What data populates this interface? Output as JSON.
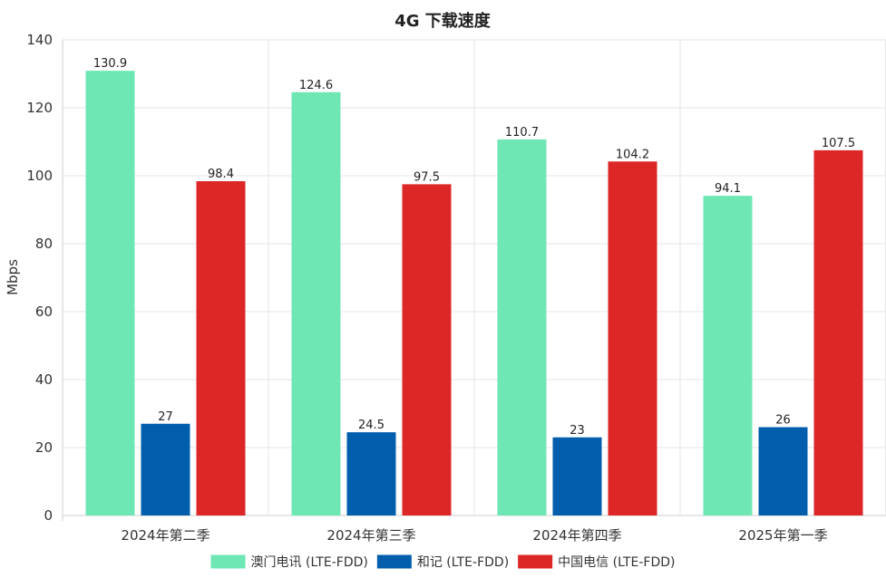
{
  "chart_data": {
    "type": "bar",
    "title": "4G 下载速度",
    "xlabel": "",
    "ylabel": "Mbps",
    "ylim": [
      0,
      140
    ],
    "yticks": [
      0,
      20,
      40,
      60,
      80,
      100,
      120,
      140
    ],
    "grid": true,
    "legend_position": "bottom",
    "categories": [
      "2024年第二季",
      "2024年第三季",
      "2024年第四季",
      "2025年第一季"
    ],
    "series": [
      {
        "name": "澳门电讯 (LTE-FDD)",
        "color": "#6ee7b4",
        "values": [
          130.9,
          124.6,
          110.7,
          94.1
        ]
      },
      {
        "name": "和记 (LTE-FDD)",
        "color": "#005ead",
        "values": [
          27,
          24.5,
          23,
          26
        ]
      },
      {
        "name": "中国电信 (LTE-FDD)",
        "color": "#dd2626",
        "values": [
          98.4,
          97.5,
          104.2,
          107.5
        ]
      }
    ]
  }
}
